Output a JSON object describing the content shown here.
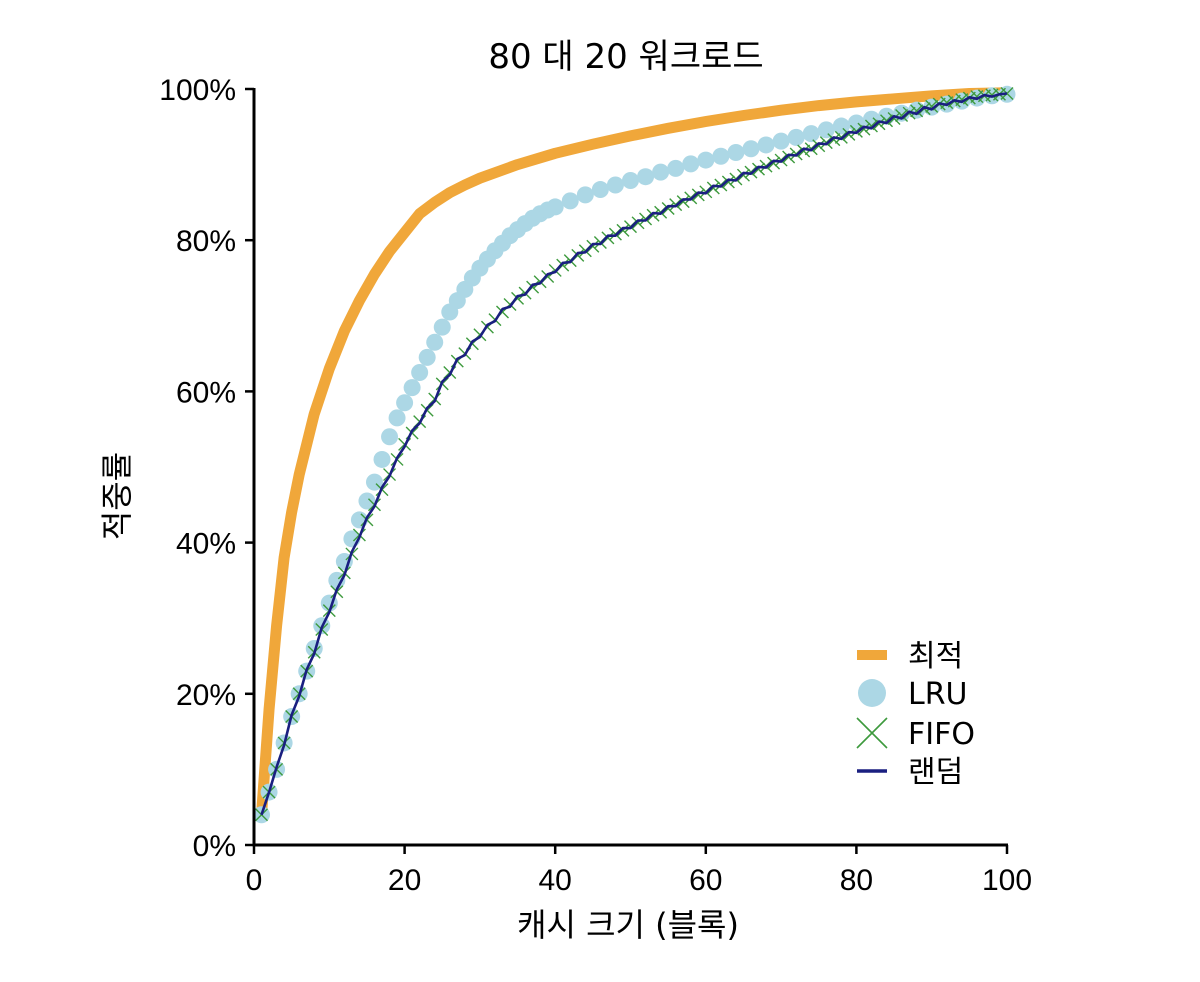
{
  "chart_data": {
    "type": "line",
    "title": "80 대 20 워크로드",
    "xlabel": "캐시 크기 (블록)",
    "ylabel": "적중률",
    "xlim": [
      0,
      100
    ],
    "ylim": [
      0,
      100
    ],
    "x_ticks": [
      "0",
      "20",
      "40",
      "60",
      "80",
      "100"
    ],
    "y_ticks": [
      "0%",
      "20%",
      "40%",
      "60%",
      "80%",
      "100%"
    ],
    "legend_position": "bottom-right",
    "grid": false,
    "series": [
      {
        "name": "최적",
        "style": "thick-line",
        "color": "#f0a73a",
        "x": [
          1,
          2,
          3,
          4,
          5,
          6,
          8,
          10,
          12,
          14,
          16,
          18,
          20,
          22,
          24,
          26,
          28,
          30,
          35,
          40,
          45,
          50,
          55,
          60,
          65,
          70,
          75,
          80,
          85,
          90,
          95,
          100
        ],
        "y": [
          4,
          18,
          29,
          38,
          44,
          49,
          57,
          63,
          68,
          72,
          75.5,
          78.5,
          81,
          83.5,
          85,
          86.3,
          87.3,
          88.2,
          90,
          91.5,
          92.7,
          93.8,
          94.8,
          95.7,
          96.5,
          97.2,
          97.8,
          98.3,
          98.7,
          99.1,
          99.4,
          99.5
        ]
      },
      {
        "name": "LRU",
        "style": "dots",
        "color": "#acd7e5",
        "x": [
          1,
          2,
          3,
          4,
          5,
          6,
          7,
          8,
          9,
          10,
          11,
          12,
          13,
          14,
          15,
          16,
          17,
          18,
          19,
          20,
          21,
          22,
          23,
          24,
          25,
          26,
          27,
          28,
          29,
          30,
          31,
          32,
          33,
          34,
          35,
          36,
          37,
          38,
          39,
          40,
          42,
          44,
          46,
          48,
          50,
          52,
          54,
          56,
          58,
          60,
          62,
          64,
          66,
          68,
          70,
          72,
          74,
          76,
          78,
          80,
          82,
          84,
          86,
          88,
          90,
          92,
          94,
          96,
          98,
          100
        ],
        "y": [
          4,
          7,
          10,
          13.5,
          17,
          20,
          23,
          26,
          29,
          32,
          35,
          37.5,
          40.5,
          43,
          45.5,
          48,
          51,
          54,
          56.5,
          58.5,
          60.5,
          62.5,
          64.5,
          66.5,
          68.5,
          70.5,
          72,
          73.5,
          75,
          76.3,
          77.5,
          78.6,
          79.6,
          80.6,
          81.4,
          82.2,
          82.9,
          83.5,
          84,
          84.4,
          85.2,
          86,
          86.7,
          87.3,
          87.9,
          88.4,
          89,
          89.5,
          90.1,
          90.6,
          91.1,
          91.6,
          92.1,
          92.6,
          93.1,
          93.6,
          94.1,
          94.6,
          95.1,
          95.5,
          96,
          96.4,
          96.8,
          97.2,
          97.6,
          98,
          98.4,
          98.8,
          99.1,
          99.3
        ]
      },
      {
        "name": "FIFO",
        "style": "x-markers",
        "color": "#3d9a3d",
        "x": [
          1,
          2,
          3,
          4,
          5,
          6,
          7,
          8,
          9,
          10,
          11,
          12,
          13,
          14,
          15,
          16,
          17,
          18,
          19,
          20,
          21,
          22,
          23,
          24,
          25,
          26,
          27,
          28,
          29,
          30,
          31,
          32,
          33,
          34,
          35,
          36,
          37,
          38,
          39,
          40,
          41,
          42,
          43,
          44,
          45,
          46,
          47,
          48,
          49,
          50,
          51,
          52,
          53,
          54,
          55,
          56,
          57,
          58,
          59,
          60,
          61,
          62,
          63,
          64,
          65,
          66,
          67,
          68,
          69,
          70,
          71,
          72,
          73,
          74,
          75,
          76,
          77,
          78,
          79,
          80,
          81,
          82,
          83,
          84,
          85,
          86,
          87,
          88,
          89,
          90,
          91,
          92,
          93,
          94,
          95,
          96,
          97,
          98,
          99,
          100
        ],
        "y": [
          4,
          7,
          10,
          13.5,
          17,
          20,
          23,
          25.5,
          28.5,
          31,
          33.5,
          36,
          38.5,
          41,
          43,
          45,
          47,
          49,
          51,
          53,
          54.5,
          56,
          57.5,
          59,
          61,
          62.5,
          64,
          65,
          66.3,
          67.5,
          68.5,
          69.5,
          70.5,
          71.5,
          72.3,
          73,
          73.8,
          74.5,
          75.2,
          76,
          76.7,
          77.3,
          78,
          78.6,
          79.2,
          79.7,
          80.3,
          80.8,
          81.3,
          81.8,
          82.3,
          82.8,
          83.3,
          83.7,
          84.2,
          84.7,
          85.1,
          85.6,
          86,
          86.4,
          86.9,
          87.3,
          87.7,
          88.1,
          88.6,
          89,
          89.4,
          89.8,
          90.2,
          90.6,
          91,
          91.4,
          91.8,
          92.1,
          92.5,
          92.9,
          93.3,
          93.6,
          94,
          94.4,
          94.7,
          95.1,
          95.4,
          95.8,
          96.1,
          96.5,
          96.8,
          97.1,
          97.4,
          97.7,
          98,
          98.2,
          98.4,
          98.6,
          98.8,
          99,
          99.1,
          99.2,
          99.3,
          99.4
        ]
      },
      {
        "name": "랜덤",
        "style": "line",
        "color": "#1a1f80",
        "x": [
          1,
          2,
          3,
          4,
          5,
          6,
          7,
          8,
          9,
          10,
          11,
          12,
          13,
          14,
          15,
          16,
          17,
          18,
          19,
          20,
          21,
          22,
          23,
          24,
          25,
          26,
          27,
          28,
          29,
          30,
          31,
          32,
          33,
          34,
          35,
          36,
          37,
          38,
          39,
          40,
          41,
          42,
          43,
          44,
          45,
          46,
          47,
          48,
          49,
          50,
          51,
          52,
          53,
          54,
          55,
          56,
          57,
          58,
          59,
          60,
          61,
          62,
          63,
          64,
          65,
          66,
          67,
          68,
          69,
          70,
          71,
          72,
          73,
          74,
          75,
          76,
          77,
          78,
          79,
          80,
          81,
          82,
          83,
          84,
          85,
          86,
          87,
          88,
          89,
          90,
          91,
          92,
          93,
          94,
          95,
          96,
          97,
          98,
          99,
          100
        ],
        "y": [
          4,
          7,
          10.3,
          13.2,
          17.2,
          19.7,
          23.2,
          25.3,
          28.8,
          30.8,
          33.8,
          35.7,
          38.8,
          40.7,
          43.3,
          44.8,
          47.3,
          48.8,
          51.2,
          52.7,
          54.8,
          55.8,
          57.8,
          58.7,
          61.3,
          62.2,
          64.3,
          64.8,
          66.6,
          67.2,
          68.8,
          69.3,
          70.9,
          71.2,
          72.6,
          72.8,
          74.1,
          74.3,
          75.5,
          75.8,
          77,
          77.1,
          78.3,
          78.4,
          79.5,
          79.5,
          80.6,
          80.6,
          81.6,
          81.6,
          82.6,
          82.6,
          83.6,
          83.5,
          84.5,
          84.5,
          85.4,
          85.4,
          86.3,
          86.2,
          87.2,
          87.1,
          88,
          87.9,
          88.9,
          88.8,
          89.7,
          89.6,
          90.5,
          90.4,
          91.3,
          91.2,
          92.1,
          91.9,
          92.8,
          92.7,
          93.6,
          93.4,
          94.3,
          94.2,
          95,
          94.8,
          95.7,
          95.5,
          96.4,
          96.1,
          97,
          96.7,
          97.6,
          97.3,
          98.1,
          97.9,
          98.5,
          98.3,
          98.9,
          98.7,
          99.2,
          99,
          99.3,
          99.4
        ]
      }
    ]
  }
}
